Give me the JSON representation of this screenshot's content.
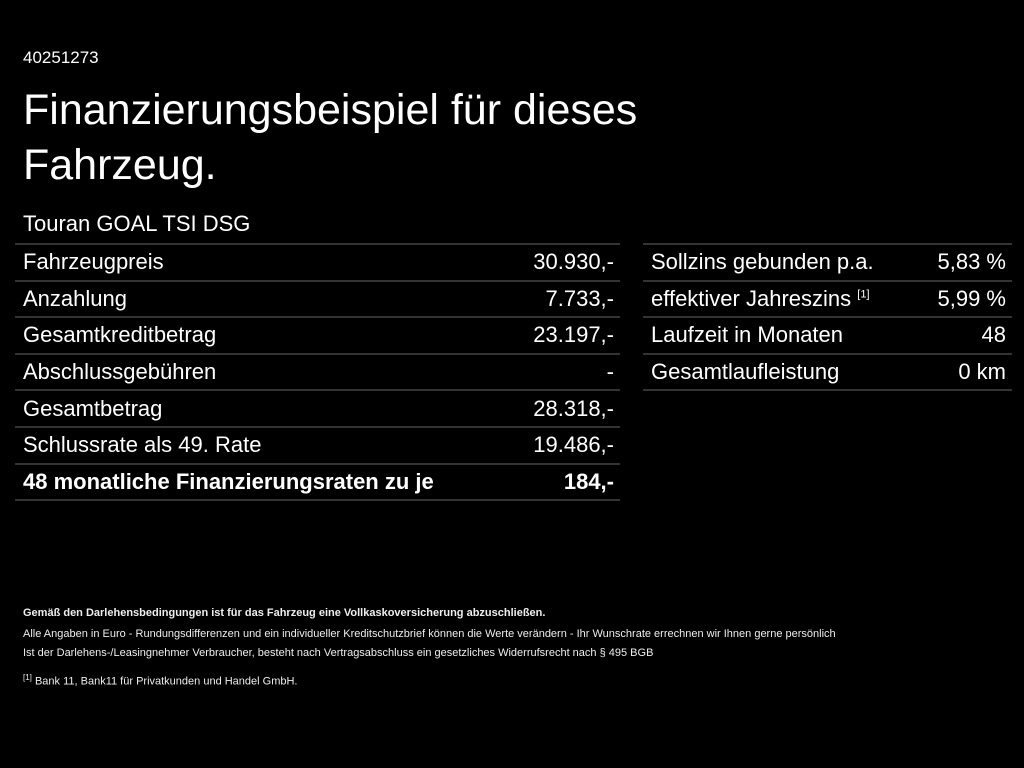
{
  "header": {
    "id": "40251273",
    "title_line1": "Finanzierungsbeispiel für dieses",
    "title_line2": "Fahrzeug.",
    "model": "Touran GOAL TSI DSG"
  },
  "left_table": {
    "rows": [
      {
        "label": "Fahrzeugpreis",
        "value": "30.930,-"
      },
      {
        "label": "Anzahlung",
        "value": "7.733,-"
      },
      {
        "label": "Gesamtkreditbetrag",
        "value": "23.197,-"
      },
      {
        "label": "Abschlussgebühren",
        "value": "-"
      },
      {
        "label": "Gesamtbetrag",
        "value": "28.318,-"
      },
      {
        "label": "Schlussrate als 49. Rate",
        "value": "19.486,-"
      },
      {
        "label": "48 monatliche Finanzierungsraten zu je",
        "value": "184,-"
      }
    ]
  },
  "right_table": {
    "rows": [
      {
        "label": "Sollzins gebunden p.a.",
        "value": "5,83 %"
      },
      {
        "label": "effektiver Jahreszins",
        "note": "[1]",
        "value": "5,99 %"
      },
      {
        "label": "Laufzeit in Monaten",
        "value": "48"
      },
      {
        "label": "Gesamtlaufleistung",
        "value": "0 km"
      }
    ]
  },
  "footer": {
    "bold_note": "Gemäß den Darlehensbedingungen ist für das Fahrzeug eine Vollkaskoversicherung abzuschließen.",
    "lines": [
      "Alle Angaben in Euro - Rundungsdifferenzen und ein individueller Kreditschutzbrief können die Werte verändern - Ihr Wunschrate errechnen wir Ihnen gerne persönlich",
      "Ist der Darlehens-/Leasingnehmer Verbraucher, besteht nach Vertragsabschluss ein gesetzliches Widerrufsrecht nach § 495 BGB"
    ],
    "footnote": {
      "marker": "[1]",
      "text": "Bank 11, Bank11 für Privatkunden und Handel GmbH."
    }
  }
}
